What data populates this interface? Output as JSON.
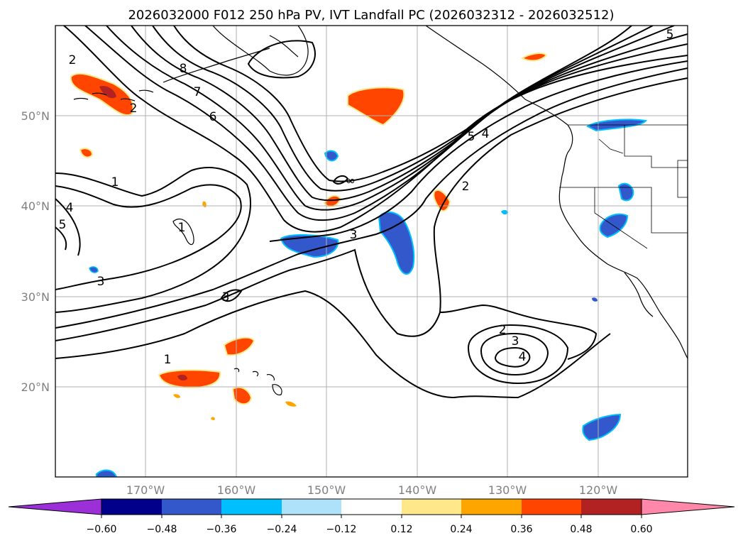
{
  "title": "2026032000 F012 250 hPa PV, IVT Landfall PC (2026032312 - 2026032512)",
  "map": {
    "lon_ticks": [
      "170°W",
      "160°W",
      "150°W",
      "140°W",
      "130°W",
      "120°W"
    ],
    "lat_ticks": [
      "50°N",
      "40°N",
      "30°N",
      "20°N"
    ],
    "contour_labels": [
      "2",
      "8",
      "7",
      "6",
      "2",
      "1",
      "4",
      "5",
      "1",
      "3",
      "3",
      "1",
      "∞",
      "3",
      "5",
      "4",
      "2",
      "2",
      "3",
      "4",
      "5"
    ],
    "contour_color": "#000000",
    "grid": true
  },
  "colorbar": {
    "ticks": [
      "−0.60",
      "−0.48",
      "−0.36",
      "−0.24",
      "−0.12",
      "0.12",
      "0.24",
      "0.36",
      "0.48",
      "0.60"
    ],
    "colors": [
      "#9b30d9",
      "#00008b",
      "#3358cc",
      "#00bfff",
      "#aee2fa",
      "#ffffff",
      "#ffe88a",
      "#ffa500",
      "#ff4500",
      "#b22222",
      "#ff88aa"
    ],
    "extend": "both"
  },
  "shading_colors": {
    "neg_strong": "#3358cc",
    "neg_mid": "#1e90ff",
    "neg_light": "#00bfff",
    "pos_light": "#ffe88a",
    "pos_mid": "#ffa500",
    "pos_strong": "#ff4500",
    "pos_max": "#b22222"
  }
}
